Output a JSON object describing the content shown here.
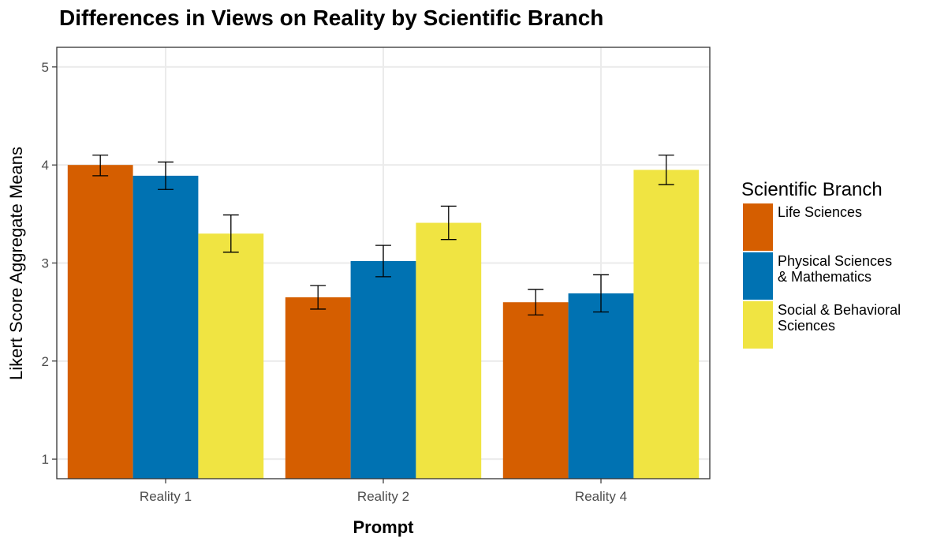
{
  "chart_data": {
    "type": "bar",
    "title": "Differences in Views on Reality by Scientific Branch",
    "xlabel": "Prompt",
    "ylabel": "Likert Score Aggregate Means",
    "categories": [
      "Reality 1",
      "Reality 2",
      "Reality 4"
    ],
    "ylim": [
      0.8,
      5.2
    ],
    "yticks": [
      1,
      2,
      3,
      4,
      5
    ],
    "grid": true,
    "legend_title": "Scientific Branch",
    "legend_position": "right",
    "series": [
      {
        "name": "Life Sciences",
        "label_lines": [
          "Life Sciences"
        ],
        "color": "#D55E00",
        "values": [
          4.0,
          2.65,
          2.6
        ],
        "error": [
          [
            3.89,
            4.1
          ],
          [
            2.53,
            2.77
          ],
          [
            2.47,
            2.73
          ]
        ]
      },
      {
        "name": "Physical Sciences & Mathematics",
        "label_lines": [
          "Physical Sciences",
          "& Mathematics"
        ],
        "color": "#0072B2",
        "values": [
          3.89,
          3.02,
          2.69
        ],
        "error": [
          [
            3.75,
            4.03
          ],
          [
            2.86,
            3.18
          ],
          [
            2.5,
            2.88
          ]
        ]
      },
      {
        "name": "Social & Behavioral Sciences",
        "label_lines": [
          "Social & Behavioral",
          "Sciences"
        ],
        "color": "#F0E442",
        "values": [
          3.3,
          3.41,
          3.95
        ],
        "error": [
          [
            3.11,
            3.49
          ],
          [
            3.24,
            3.58
          ],
          [
            3.8,
            4.1
          ]
        ]
      }
    ]
  }
}
